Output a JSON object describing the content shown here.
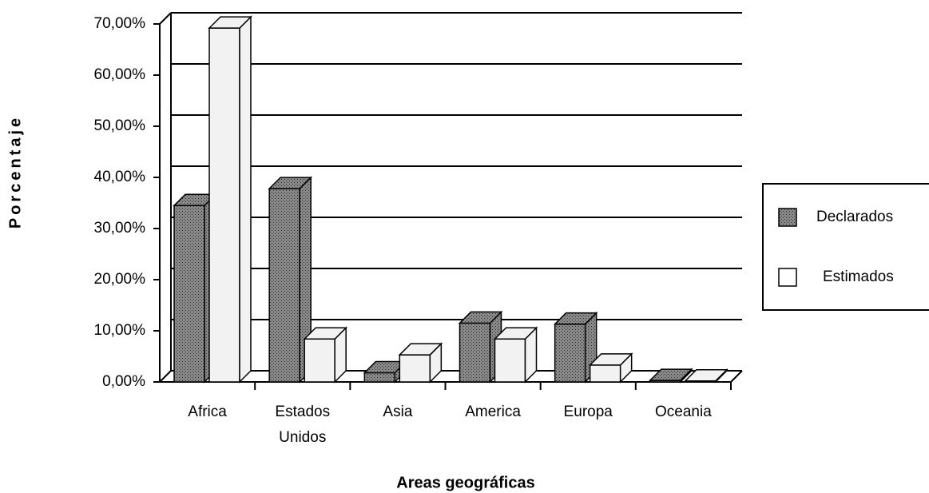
{
  "chart_data": {
    "type": "bar3d",
    "x_label": "Areas geográficas",
    "y_label": "Porcentaje",
    "categories": [
      "Africa",
      "Estados Unidos",
      "Asia",
      "America",
      "Europa",
      "Oceania"
    ],
    "series": [
      {
        "name": "Declarados",
        "color": "#6e6e6e",
        "values": [
          34.5,
          37.8,
          1.8,
          11.5,
          11.3,
          0.3
        ]
      },
      {
        "name": "Estimados",
        "color": "#f2f2f2",
        "values": [
          69.2,
          8.4,
          5.3,
          8.4,
          3.3,
          0.2
        ]
      }
    ],
    "ylim": [
      0,
      70
    ],
    "yticks": [
      {
        "value": 0,
        "label": "0,00%"
      },
      {
        "value": 10,
        "label": "10,00%"
      },
      {
        "value": 20,
        "label": "20,00%"
      },
      {
        "value": 30,
        "label": "30,00%"
      },
      {
        "value": 40,
        "label": "40,00%"
      },
      {
        "value": 50,
        "label": "50,00%"
      },
      {
        "value": 60,
        "label": "60,00%"
      },
      {
        "value": 70,
        "label": "70,00%"
      }
    ],
    "grid": true,
    "legend": "right"
  }
}
